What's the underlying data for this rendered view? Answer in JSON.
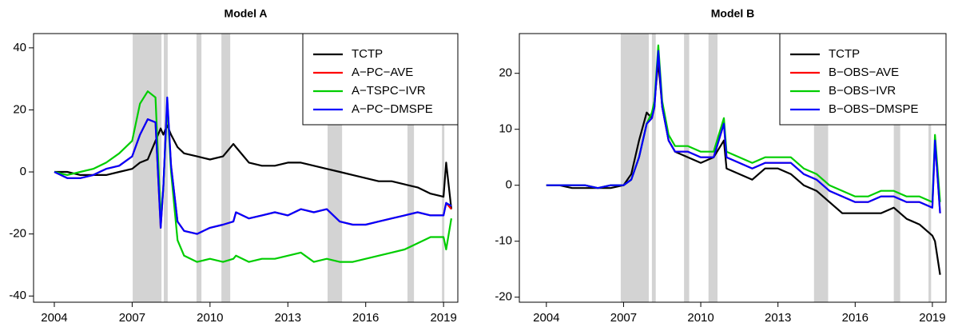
{
  "chart_data": [
    {
      "type": "line",
      "title": "Model A",
      "legend": "topright",
      "grid": false,
      "xlim": [
        2003.2,
        2019.55
      ],
      "xticks": [
        2004,
        2007,
        2010,
        2013,
        2016,
        2019
      ],
      "ylim": [
        -42,
        44.6
      ],
      "yticks": [
        -40,
        -20,
        0,
        20,
        40
      ],
      "shade_color": "#d3d3d3",
      "shaded": [
        [
          2007.02,
          2008.13
        ],
        [
          2008.22,
          2008.37
        ],
        [
          2009.48,
          2009.67
        ],
        [
          2010.44,
          2010.78
        ],
        [
          2014.53,
          2015.09
        ],
        [
          2017.61,
          2017.86
        ],
        [
          2018.94,
          2019.03
        ]
      ],
      "x": [
        2004,
        2004.5,
        2005,
        2005.5,
        2006,
        2006.5,
        2007,
        2007.3,
        2007.6,
        2007.9,
        2008.1,
        2008.2,
        2008.35,
        2008.5,
        2008.75,
        2009,
        2009.5,
        2010,
        2010.5,
        2010.9,
        2011,
        2011.5,
        2012,
        2012.5,
        2013,
        2013.5,
        2014,
        2014.5,
        2015,
        2015.5,
        2016,
        2016.5,
        2017,
        2017.5,
        2018,
        2018.5,
        2019,
        2019.1,
        2019.3
      ],
      "series": [
        {
          "name": "TCTP",
          "color": "#000000",
          "values": [
            0,
            0,
            -1,
            -1,
            -1,
            0,
            1,
            3,
            4,
            10,
            14,
            12,
            15,
            12,
            8,
            6,
            5,
            4,
            5,
            9,
            8,
            3,
            2,
            2,
            3,
            3,
            2,
            1,
            0,
            -1,
            -2,
            -3,
            -3,
            -4,
            -5,
            -7,
            -8,
            3,
            -12
          ]
        },
        {
          "name": "A−PC−AVE",
          "color": "#ff0000",
          "values": [
            0,
            -2,
            -2,
            -1,
            1,
            2,
            5,
            12,
            17,
            16,
            -18,
            -5,
            23,
            2,
            -16,
            -19,
            -20,
            -18,
            -17,
            -16,
            -13,
            -15,
            -14,
            -13,
            -14,
            -12,
            -13,
            -12,
            -16,
            -17,
            -17,
            -16,
            -15,
            -14,
            -13,
            -14,
            -14,
            -10,
            -12
          ]
        },
        {
          "name": "A−TSPC−IVR",
          "color": "#00cd00",
          "values": [
            0,
            -1,
            0,
            1,
            3,
            6,
            10,
            22,
            26,
            24,
            -15,
            -5,
            22,
            0,
            -22,
            -27,
            -29,
            -28,
            -29,
            -28,
            -27,
            -29,
            -28,
            -28,
            -27,
            -26,
            -29,
            -28,
            -29,
            -29,
            -28,
            -27,
            -26,
            -25,
            -23,
            -21,
            -21,
            -25,
            -15
          ]
        },
        {
          "name": "A−PC−DMSPE",
          "color": "#0000ff",
          "values": [
            0,
            -2,
            -2,
            -1,
            1,
            2,
            5,
            12,
            17,
            16,
            -18,
            -5,
            24,
            2,
            -16,
            -19,
            -20,
            -18,
            -17,
            -16,
            -13,
            -15,
            -14,
            -13,
            -14,
            -12,
            -13,
            -12,
            -16,
            -17,
            -17,
            -16,
            -15,
            -14,
            -13,
            -14,
            -14,
            -10,
            -11
          ]
        }
      ]
    },
    {
      "type": "line",
      "title": "Model B",
      "legend": "topright",
      "grid": false,
      "xlim": [
        2002.95,
        2019.53
      ],
      "xticks": [
        2004,
        2007,
        2010,
        2013,
        2016,
        2019
      ],
      "ylim": [
        -20.9,
        27.1
      ],
      "yticks": [
        -20,
        -10,
        0,
        10,
        20
      ],
      "shade_color": "#d3d3d3",
      "shaded": [
        [
          2006.89,
          2007.98
        ],
        [
          2008.1,
          2008.25
        ],
        [
          2009.35,
          2009.55
        ],
        [
          2010.3,
          2010.65
        ],
        [
          2014.4,
          2014.95
        ],
        [
          2017.5,
          2017.75
        ],
        [
          2018.85,
          2018.95
        ]
      ],
      "x": [
        2004,
        2004.5,
        2005,
        2005.5,
        2006,
        2006.5,
        2007,
        2007.3,
        2007.6,
        2007.9,
        2008.1,
        2008.2,
        2008.35,
        2008.5,
        2008.75,
        2009,
        2009.5,
        2010,
        2010.5,
        2010.9,
        2011,
        2011.5,
        2012,
        2012.5,
        2013,
        2013.5,
        2014,
        2014.5,
        2015,
        2015.5,
        2016,
        2016.5,
        2017,
        2017.5,
        2018,
        2018.5,
        2019,
        2019.1,
        2019.3
      ],
      "series": [
        {
          "name": "TCTP",
          "color": "#000000",
          "values": [
            0,
            0,
            -0.5,
            -0.5,
            -0.5,
            -0.5,
            0,
            2,
            8,
            13,
            12,
            15,
            22,
            14,
            8,
            6,
            5,
            4,
            5,
            8,
            3,
            2,
            1,
            3,
            3,
            2,
            0,
            -1,
            -3,
            -5,
            -5,
            -5,
            -5,
            -4,
            -6,
            -7,
            -9,
            -10,
            -16
          ]
        },
        {
          "name": "B−OBS−AVE",
          "color": "#ff0000",
          "values": [
            0,
            0,
            0,
            0,
            -0.5,
            0,
            0,
            1,
            5,
            11,
            12,
            14,
            24,
            14,
            8,
            6,
            6,
            5,
            5,
            11,
            5,
            4,
            3,
            4,
            4,
            4,
            2,
            1,
            -1,
            -2,
            -3,
            -3,
            -2,
            -2,
            -3,
            -3,
            -4,
            8,
            -5
          ]
        },
        {
          "name": "B−OBS−IVR",
          "color": "#00cd00",
          "values": [
            0,
            0,
            0,
            0,
            -0.5,
            0,
            0,
            1,
            5,
            11,
            13,
            15,
            25,
            15,
            9,
            7,
            7,
            6,
            6,
            12,
            6,
            5,
            4,
            5,
            5,
            5,
            3,
            2,
            0,
            -1,
            -2,
            -2,
            -1,
            -1,
            -2,
            -2,
            -3,
            9,
            -3
          ]
        },
        {
          "name": "B−OBS−DMSPE",
          "color": "#0000ff",
          "values": [
            0,
            0,
            0,
            0,
            -0.5,
            0,
            0,
            1,
            5,
            11,
            12,
            14,
            24,
            14,
            8,
            6,
            6,
            5,
            5,
            11,
            5,
            4,
            3,
            4,
            4,
            4,
            2,
            1,
            -1,
            -2,
            -3,
            -3,
            -2,
            -2,
            -3,
            -3,
            -4,
            8,
            -5
          ]
        }
      ]
    }
  ]
}
